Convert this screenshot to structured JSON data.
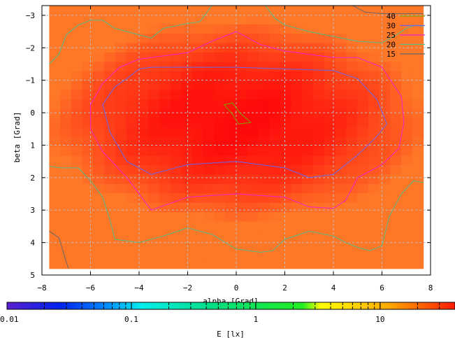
{
  "chart_data": {
    "type": "heatmap",
    "xlabel": "alpha [Grad]",
    "ylabel": "beta [Grad]",
    "xlim": [
      -8,
      8
    ],
    "ylim": [
      -3.3,
      5
    ],
    "x_ticks": [
      -8,
      -6,
      -4,
      -2,
      0,
      2,
      4,
      6,
      8
    ],
    "y_ticks": [
      -3,
      -2,
      -1,
      0,
      1,
      2,
      3,
      4,
      5
    ],
    "y_axis_inverted": true,
    "grid": true,
    "legend_position": "top-right",
    "data_extent": {
      "x": [
        -7.7,
        7.7
      ],
      "y": [
        -3.3,
        4.8
      ]
    },
    "contour_levels": [
      {
        "label": "40",
        "color": "#7f9f00"
      },
      {
        "label": "30",
        "color": "#6666ee"
      },
      {
        "label": "25",
        "color": "#ee22cc"
      },
      {
        "label": "20",
        "color": "#55bb88"
      },
      {
        "label": "15",
        "color": "#666666"
      }
    ],
    "contours": [
      {
        "level": "40",
        "closed": true,
        "points": [
          [
            -0.5,
            -0.25
          ],
          [
            -0.15,
            -0.3
          ],
          [
            0.15,
            0.0
          ],
          [
            0.6,
            0.3
          ],
          [
            0.1,
            0.35
          ],
          [
            -0.15,
            0.05
          ],
          [
            -0.5,
            -0.25
          ]
        ]
      },
      {
        "level": "30",
        "closed": true,
        "points": [
          [
            -5.5,
            -0.25
          ],
          [
            -5,
            -0.8
          ],
          [
            -4.5,
            -1.05
          ],
          [
            -4,
            -1.35
          ],
          [
            -3.5,
            -1.4
          ],
          [
            -2,
            -1.4
          ],
          [
            0,
            -1.4
          ],
          [
            2,
            -1.35
          ],
          [
            4,
            -1.3
          ],
          [
            5,
            -1.05
          ],
          [
            5.8,
            -0.4
          ],
          [
            6.2,
            0.35
          ],
          [
            5.7,
            0.8
          ],
          [
            5,
            1.3
          ],
          [
            4,
            1.9
          ],
          [
            3,
            2.0
          ],
          [
            2,
            1.7
          ],
          [
            0,
            1.5
          ],
          [
            -2,
            1.6
          ],
          [
            -3.5,
            1.9
          ],
          [
            -4.5,
            1.5
          ],
          [
            -5.2,
            0.6
          ],
          [
            -5.5,
            -0.25
          ]
        ]
      },
      {
        "level": "25",
        "closed": true,
        "points": [
          [
            -6,
            -0.25
          ],
          [
            -5.5,
            -0.9
          ],
          [
            -4.8,
            -1.4
          ],
          [
            -4,
            -1.65
          ],
          [
            -3,
            -1.75
          ],
          [
            -2,
            -1.85
          ],
          [
            -1,
            -2.2
          ],
          [
            0,
            -2.5
          ],
          [
            1,
            -2.1
          ],
          [
            2,
            -1.9
          ],
          [
            3,
            -1.8
          ],
          [
            4,
            -1.7
          ],
          [
            5,
            -1.7
          ],
          [
            6,
            -1.4
          ],
          [
            6.8,
            -0.5
          ],
          [
            6.9,
            0.3
          ],
          [
            6.7,
            1.1
          ],
          [
            6,
            1.6
          ],
          [
            5,
            2.0
          ],
          [
            4.5,
            2.7
          ],
          [
            4,
            2.95
          ],
          [
            3,
            2.9
          ],
          [
            2,
            2.6
          ],
          [
            0,
            2.5
          ],
          [
            -2,
            2.6
          ],
          [
            -3.5,
            3.0
          ],
          [
            -4.5,
            2.0
          ],
          [
            -5.5,
            1.2
          ],
          [
            -6,
            0.5
          ],
          [
            -6,
            -0.25
          ]
        ]
      },
      {
        "level": "20",
        "closed": false,
        "points": [
          [
            -7.7,
            1.65
          ],
          [
            -7.2,
            1.7
          ],
          [
            -6.5,
            1.7
          ],
          [
            -6,
            2.1
          ],
          [
            -5.5,
            2.6
          ],
          [
            -5.2,
            3.3
          ],
          [
            -5,
            3.9
          ],
          [
            -4.5,
            3.95
          ],
          [
            -4,
            4.0
          ],
          [
            -3,
            3.8
          ],
          [
            -2,
            3.55
          ],
          [
            -1,
            3.75
          ],
          [
            0,
            4.2
          ],
          [
            1,
            4.3
          ],
          [
            1.5,
            4.25
          ],
          [
            2,
            3.9
          ],
          [
            3,
            3.65
          ],
          [
            4,
            3.8
          ],
          [
            4.5,
            4.0
          ],
          [
            5,
            4.15
          ],
          [
            5.5,
            4.25
          ],
          [
            6,
            4.1
          ],
          [
            6.3,
            3.2
          ],
          [
            6.8,
            2.5
          ],
          [
            7.3,
            2.1
          ],
          [
            7.7,
            2.15
          ]
        ]
      },
      {
        "level": "20",
        "closed": false,
        "points": [
          [
            -7.7,
            -1.5
          ],
          [
            -7.3,
            -1.8
          ],
          [
            -7,
            -2.4
          ],
          [
            -6.5,
            -2.7
          ],
          [
            -6,
            -2.85
          ],
          [
            -5.5,
            -2.85
          ],
          [
            -5,
            -2.6
          ],
          [
            -4.5,
            -2.5
          ],
          [
            -3.5,
            -2.3
          ],
          [
            -3,
            -2.6
          ],
          [
            -2,
            -2.75
          ],
          [
            -1.5,
            -2.8
          ],
          [
            -1,
            -3.3
          ]
        ]
      },
      {
        "level": "20",
        "closed": false,
        "points": [
          [
            1.2,
            -3.3
          ],
          [
            1.6,
            -2.9
          ],
          [
            2,
            -2.7
          ],
          [
            3,
            -2.5
          ],
          [
            4,
            -2.35
          ],
          [
            5,
            -2.2
          ],
          [
            6,
            -2.15
          ],
          [
            6.6,
            -2.4
          ],
          [
            7,
            -2.6
          ],
          [
            7.4,
            -2.7
          ],
          [
            7.7,
            -2.65
          ]
        ]
      },
      {
        "level": "15",
        "closed": false,
        "points": [
          [
            -7.7,
            3.65
          ],
          [
            -7.3,
            3.85
          ],
          [
            -7,
            4.6
          ],
          [
            -6.9,
            4.8
          ]
        ]
      },
      {
        "level": "15",
        "closed": false,
        "points": [
          [
            4.8,
            -3.3
          ],
          [
            5.3,
            -3.1
          ],
          [
            6,
            -3.05
          ],
          [
            7,
            -3.05
          ],
          [
            7.7,
            -3.05
          ]
        ]
      }
    ],
    "colorbar": {
      "label": "E [lx]",
      "scale": "log",
      "range": [
        0.01,
        40
      ],
      "tick_labels": [
        "0.01",
        "0.1",
        "1",
        "10"
      ]
    }
  }
}
